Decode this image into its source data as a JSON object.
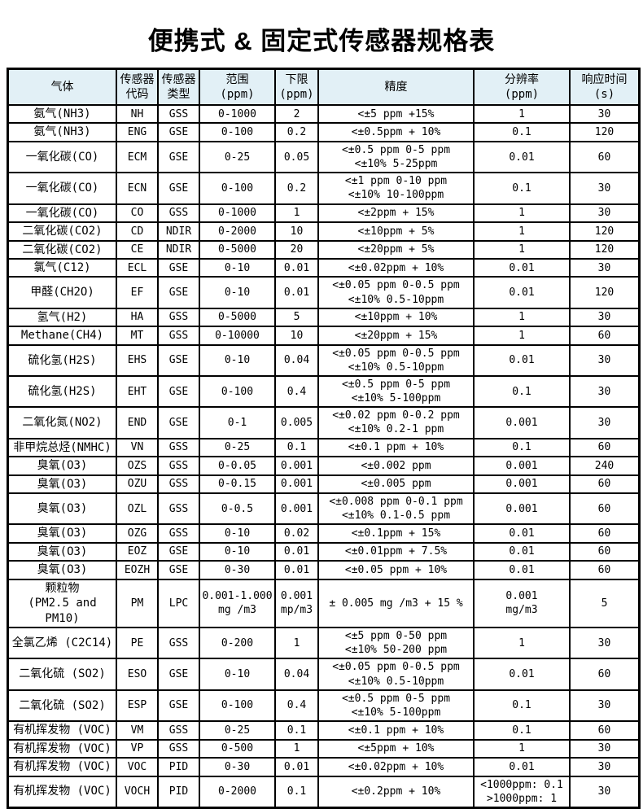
{
  "page_title": "便携式 & 固定式传感器规格表",
  "table": {
    "columns": [
      {
        "key": "gas",
        "label": "气体"
      },
      {
        "key": "code",
        "label": "传感器\n代码"
      },
      {
        "key": "type",
        "label": "传感器\n类型"
      },
      {
        "key": "range",
        "label": "范围\n(ppm)"
      },
      {
        "key": "limit",
        "label": "下限\n(ppm)"
      },
      {
        "key": "accuracy",
        "label": "精度"
      },
      {
        "key": "resolution",
        "label": "分辨率\n(ppm)"
      },
      {
        "key": "response",
        "label": "响应时间\n(s)"
      }
    ],
    "rows": [
      [
        "氨气(NH3)",
        "NH",
        "GSS",
        "0-1000",
        "2",
        "<±5 ppm +15%",
        "1",
        "30"
      ],
      [
        "氨气(NH3)",
        "ENG",
        "GSE",
        "0-100",
        "0.2",
        "<±0.5ppm + 10%",
        "0.1",
        "120"
      ],
      [
        "一氧化碳(CO)",
        "ECM",
        "GSE",
        "0-25",
        "0.05",
        "<±0.5 ppm 0-5 ppm\n<±10% 5-25ppm",
        "0.01",
        "60"
      ],
      [
        "一氧化碳(CO)",
        "ECN",
        "GSE",
        "0-100",
        "0.2",
        "<±1 ppm 0-10 ppm\n<±10% 10-100ppm",
        "0.1",
        "30"
      ],
      [
        "一氧化碳(CO)",
        "CO",
        "GSS",
        "0-1000",
        "1",
        "<±2ppm + 15%",
        "1",
        "30"
      ],
      [
        "二氧化碳(CO2)",
        "CD",
        "NDIR",
        "0-2000",
        "10",
        "<±10ppm + 5%",
        "1",
        "120"
      ],
      [
        "二氧化碳(CO2)",
        "CE",
        "NDIR",
        "0-5000",
        "20",
        "<±20ppm + 5%",
        "1",
        "120"
      ],
      [
        "氯气(C12)",
        "ECL",
        "GSE",
        "0-10",
        "0.01",
        "<±0.02ppm + 10%",
        "0.01",
        "30"
      ],
      [
        "甲醛(CH2O)",
        "EF",
        "GSE",
        "0-10",
        "0.01",
        "<±0.05 ppm 0-0.5 ppm\n<±10% 0.5-10ppm",
        "0.01",
        "120"
      ],
      [
        "氢气(H2)",
        "HA",
        "GSS",
        "0-5000",
        "5",
        "<±10ppm + 10%",
        "1",
        "30"
      ],
      [
        "Methane(CH4)",
        "MT",
        "GSS",
        "0-10000",
        "10",
        "<±20ppm + 15%",
        "1",
        "60"
      ],
      [
        "硫化氢(H2S)",
        "EHS",
        "GSE",
        "0-10",
        "0.04",
        "<±0.05 ppm 0-0.5 ppm\n<±10% 0.5-10ppm",
        "0.01",
        "30"
      ],
      [
        "硫化氢(H2S)",
        "EHT",
        "GSE",
        "0-100",
        "0.4",
        "<±0.5 ppm 0-5 ppm\n<±10% 5-100ppm",
        "0.1",
        "30"
      ],
      [
        "二氧化氮(NO2)",
        "END",
        "GSE",
        "0-1",
        "0.005",
        "<±0.02 ppm 0-0.2 ppm\n<±10% 0.2-1 ppm",
        "0.001",
        "30"
      ],
      [
        "非甲烷总烃(NMHC)",
        "VN",
        "GSS",
        "0-25",
        "0.1",
        "<±0.1 ppm + 10%",
        "0.1",
        "60"
      ],
      [
        "臭氧(O3)",
        "OZS",
        "GSS",
        "0-0.05",
        "0.001",
        "<±0.002 ppm",
        "0.001",
        "240"
      ],
      [
        "臭氧(O3)",
        "OZU",
        "GSS",
        "0-0.15",
        "0.001",
        "<±0.005 ppm",
        "0.001",
        "60"
      ],
      [
        "臭氧(O3)",
        "OZL",
        "GSS",
        "0-0.5",
        "0.001",
        "<±0.008 ppm 0-0.1 ppm\n<±10% 0.1-0.5 ppm",
        "0.001",
        "60"
      ],
      [
        "臭氧(O3)",
        "OZG",
        "GSS",
        "0-10",
        "0.02",
        "<±0.1ppm + 15%",
        "0.01",
        "60"
      ],
      [
        "臭氧(O3)",
        "EOZ",
        "GSE",
        "0-10",
        "0.01",
        "<±0.01ppm + 7.5%",
        "0.01",
        "60"
      ],
      [
        "臭氧(O3)",
        "EOZH",
        "GSE",
        "0-30",
        "0.01",
        "<±0.05 ppm + 10%",
        "0.01",
        "60"
      ],
      [
        "颗粒物\n(PM2.5 and PM10)",
        "PM",
        "LPC",
        "0.001-1.000\nmg /m3",
        "0.001\nmp/m3",
        "± 0.005 mg /m3 + 15 %",
        "0.001\nmg/m3",
        "5"
      ],
      [
        "全氯乙烯 (C2C14)",
        "PE",
        "GSS",
        "0-200",
        "1",
        "<±5 ppm 0-50 ppm\n<±10% 50-200 ppm",
        "1",
        "30"
      ],
      [
        "二氧化硫 (SO2)",
        "ESO",
        "GSE",
        "0-10",
        "0.04",
        "<±0.05 ppm 0-0.5 ppm\n<±10% 0.5-10ppm",
        "0.01",
        "60"
      ],
      [
        "二氧化硫 (SO2)",
        "ESP",
        "GSE",
        "0-100",
        "0.4",
        "<±0.5 ppm 0-5 ppm\n<±10% 5-100ppm",
        "0.1",
        "30"
      ],
      [
        "有机挥发物 (VOC)",
        "VM",
        "GSS",
        "0-25",
        "0.1",
        "<±0.1 ppm + 10%",
        "0.1",
        "60"
      ],
      [
        "有机挥发物 (VOC)",
        "VP",
        "GSS",
        "0-500",
        "1",
        "<±5ppm + 10%",
        "1",
        "30"
      ],
      [
        "有机挥发物 (VOC)",
        "VOC",
        "PID",
        "0-30",
        "0.01",
        "<±0.02ppm + 10%",
        "0.01",
        "30"
      ],
      [
        "有机挥发物 (VOC)",
        "VOCH",
        "PID",
        "0-2000",
        "0.1",
        "<±0.2ppm + 10%",
        "<1000ppm: 0.1\n>1000ppm: 1",
        "30"
      ]
    ]
  },
  "colors": {
    "header_background": "#e2f0f6",
    "border": "#000000",
    "text": "#000000"
  }
}
